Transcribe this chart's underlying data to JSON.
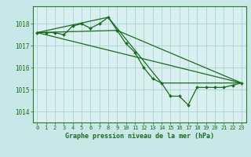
{
  "title": "Graphe pression niveau de la mer (hPa)",
  "background_color": "#c8e8e8",
  "plot_bg_color": "#d8f0f0",
  "line_color": "#1a6b1a",
  "grid_color": "#b0d8d8",
  "text_color": "#1a6b1a",
  "ylim": [
    1013.5,
    1018.8
  ],
  "xlim": [
    -0.5,
    23.5
  ],
  "yticks": [
    1014,
    1015,
    1016,
    1017,
    1018
  ],
  "xticks": [
    0,
    1,
    2,
    3,
    4,
    5,
    6,
    7,
    8,
    9,
    10,
    11,
    12,
    13,
    14,
    15,
    16,
    17,
    18,
    19,
    20,
    21,
    22,
    23
  ],
  "series1_x": [
    0,
    1,
    2,
    3,
    4,
    5,
    6,
    7,
    8,
    9,
    10,
    11,
    12,
    13,
    14,
    15,
    16,
    17,
    18,
    19,
    20,
    21,
    22,
    23
  ],
  "series1_y": [
    1017.6,
    1017.6,
    1017.6,
    1017.5,
    1017.9,
    1018.0,
    1017.8,
    1018.0,
    1018.3,
    1017.7,
    1017.1,
    1016.7,
    1016.0,
    1015.5,
    1015.3,
    1014.7,
    1014.7,
    1014.3,
    1015.1,
    1015.1,
    1015.1,
    1015.1,
    1015.2,
    1015.3
  ],
  "series2_x": [
    0,
    23
  ],
  "series2_y": [
    1017.6,
    1015.3
  ],
  "series3_x": [
    0,
    9,
    23
  ],
  "series3_y": [
    1017.6,
    1017.7,
    1015.3
  ],
  "series4_x": [
    0,
    8,
    14,
    23
  ],
  "series4_y": [
    1017.6,
    1018.3,
    1015.3,
    1015.3
  ],
  "border_color": "#2a7a2a"
}
